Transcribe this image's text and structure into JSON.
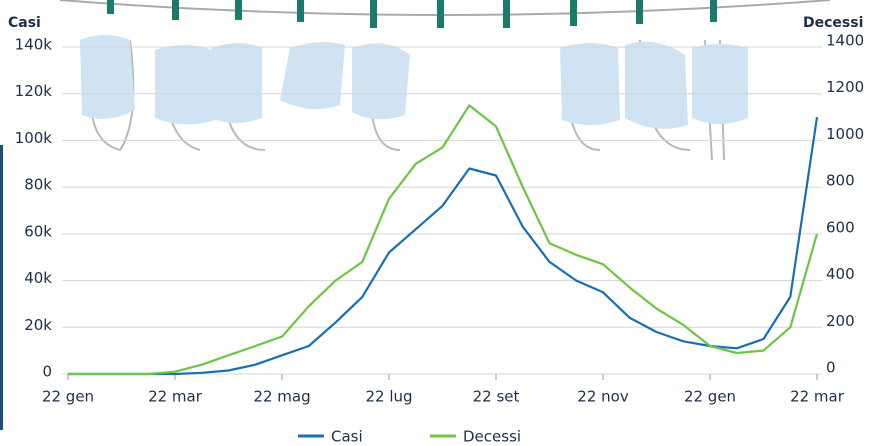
{
  "chart_data": {
    "type": "line",
    "ylabel": "Casi",
    "y2label": "Decessi",
    "categories": [
      "22 gen",
      null,
      null,
      null,
      "22 mar",
      null,
      null,
      null,
      "22 mag",
      null,
      null,
      null,
      "22 lug",
      null,
      null,
      null,
      "22 set",
      null,
      null,
      null,
      "22 nov",
      null,
      null,
      null,
      "22 gen",
      null,
      null,
      null,
      "22 mar"
    ],
    "series": [
      {
        "name": "Casi",
        "color": "#1a6fb0",
        "values": [
          0,
          0,
          0,
          0,
          0,
          500,
          1500,
          4000,
          8000,
          12000,
          22000,
          33000,
          52000,
          62000,
          72000,
          88000,
          85000,
          63000,
          48000,
          40000,
          35000,
          24000,
          18000,
          14000,
          12000,
          11000,
          15000,
          33000,
          110000
        ]
      },
      {
        "name": "Decessi",
        "color": "#6cc644",
        "axis": "y2",
        "values": [
          0,
          0,
          0,
          0,
          10,
          40,
          80,
          120,
          160,
          290,
          400,
          480,
          750,
          900,
          970,
          1150,
          1060,
          800,
          560,
          510,
          470,
          370,
          280,
          210,
          120,
          90,
          100,
          200,
          600
        ]
      }
    ],
    "ylim": [
      0,
      140000
    ],
    "yticks": [
      {
        "value": 0,
        "label": "0"
      },
      {
        "value": 20000,
        "label": "20k"
      },
      {
        "value": 40000,
        "label": "40k"
      },
      {
        "value": 60000,
        "label": "60k"
      },
      {
        "value": 80000,
        "label": "80k"
      },
      {
        "value": 100000,
        "label": "100k"
      },
      {
        "value": 120000,
        "label": "120k"
      },
      {
        "value": 140000,
        "label": "140k"
      }
    ],
    "y2lim": [
      0,
      1400
    ],
    "y2ticks": [
      0,
      200,
      400,
      600,
      800,
      1000,
      1200,
      1400
    ],
    "grid": true
  }
}
